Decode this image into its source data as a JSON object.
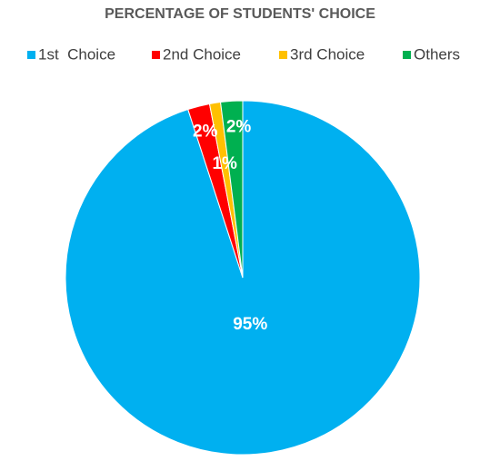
{
  "chart_data": {
    "type": "pie",
    "title": "PERCENTAGE OF STUDENTS' CHOICE",
    "categories": [
      "1st  Choice",
      "2nd Choice",
      "3rd Choice",
      "Others"
    ],
    "values": [
      95,
      2,
      1,
      2
    ],
    "value_labels": [
      "95%",
      "2%",
      "1%",
      "2%"
    ],
    "colors": [
      "#00b0f0",
      "#ff0000",
      "#ffc000",
      "#00b050"
    ],
    "legend": "top"
  }
}
